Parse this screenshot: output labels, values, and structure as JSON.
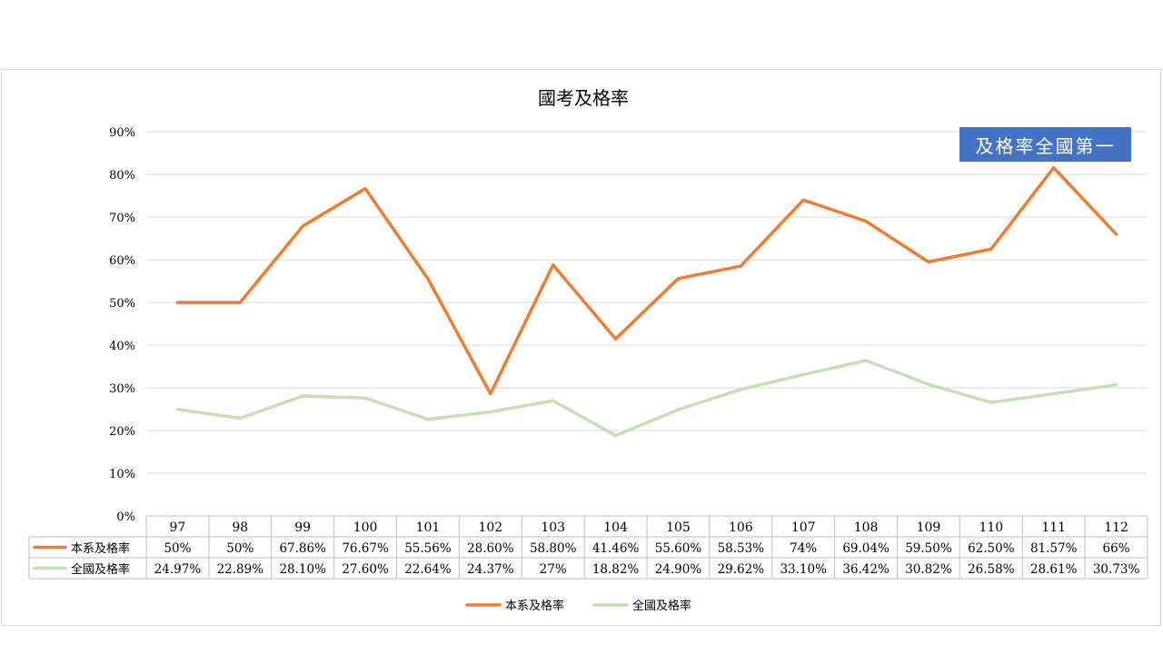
{
  "badge": "及格率全國第一",
  "chart_data": {
    "type": "line",
    "title": "國考及格率",
    "categories": [
      "97",
      "98",
      "99",
      "100",
      "101",
      "102",
      "103",
      "104",
      "105",
      "106",
      "107",
      "108",
      "109",
      "110",
      "111",
      "112"
    ],
    "yticks": [
      "0%",
      "10%",
      "20%",
      "30%",
      "40%",
      "50%",
      "60%",
      "70%",
      "80%",
      "90%"
    ],
    "ylim": [
      0,
      90
    ],
    "grid": true,
    "legend_position": "bottom",
    "series": [
      {
        "name": "本系及格率",
        "color": "#ed7d31",
        "values": [
          50,
          50,
          67.86,
          76.67,
          55.56,
          28.6,
          58.8,
          41.46,
          55.6,
          58.53,
          74,
          69.04,
          59.5,
          62.5,
          81.57,
          66
        ],
        "labels": [
          "50%",
          "50%",
          "67.86%",
          "76.67%",
          "55.56%",
          "28.60%",
          "58.80%",
          "41.46%",
          "55.60%",
          "58.53%",
          "74%",
          "69.04%",
          "59.50%",
          "62.50%",
          "81.57%",
          "66%"
        ]
      },
      {
        "name": "全國及格率",
        "color": "#c5e0b4",
        "values": [
          24.97,
          22.89,
          28.1,
          27.6,
          22.64,
          24.37,
          27,
          18.82,
          24.9,
          29.62,
          33.1,
          36.42,
          30.82,
          26.58,
          28.61,
          30.73
        ],
        "labels": [
          "24.97%",
          "22.89%",
          "28.10%",
          "27.60%",
          "22.64%",
          "24.37%",
          "27%",
          "18.82%",
          "24.90%",
          "29.62%",
          "33.10%",
          "36.42%",
          "30.82%",
          "26.58%",
          "28.61%",
          "30.73%"
        ]
      }
    ]
  }
}
